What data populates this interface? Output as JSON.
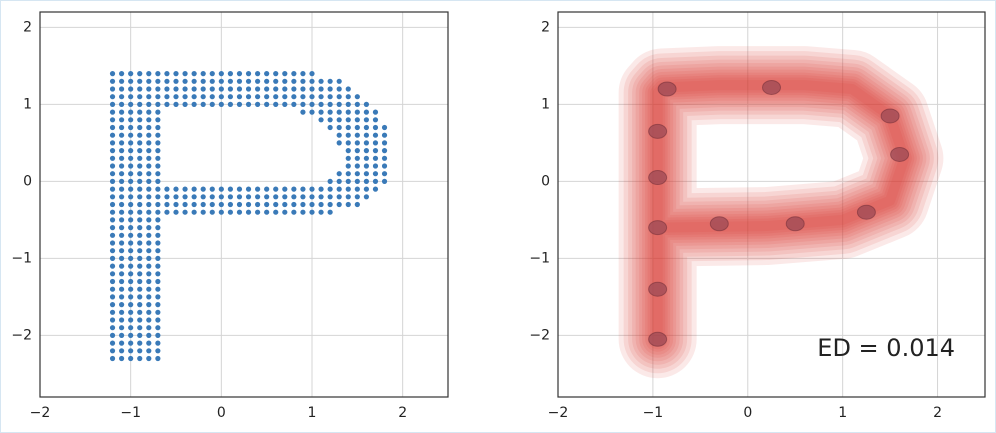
{
  "chart_data": [
    {
      "type": "scatter",
      "color": "#3a7ab8",
      "xlim": [
        -2,
        2.5
      ],
      "ylim": [
        -2.8,
        2.2
      ],
      "xticks": [
        {
          "value": -2,
          "label": "−2"
        },
        {
          "value": -1,
          "label": "−1"
        },
        0,
        1,
        2
      ],
      "yticks": [
        {
          "value": -2,
          "label": "−2"
        },
        {
          "value": -1,
          "label": "−1"
        },
        0,
        1,
        2
      ],
      "grid": true,
      "rows": [
        {
          "y": 1.4,
          "x": [
            -1.2,
            -1.1,
            -1,
            -0.9,
            -0.8,
            -0.7,
            -0.6,
            -0.5,
            -0.4,
            -0.3,
            -0.2,
            -0.1,
            0,
            0.1,
            0.2,
            0.3,
            0.4,
            0.5,
            0.6,
            0.7,
            0.8,
            0.9,
            1
          ]
        },
        {
          "y": 1.3,
          "x": [
            -1.2,
            -1.1,
            -1,
            -0.9,
            -0.8,
            -0.7,
            -0.6,
            -0.5,
            -0.4,
            -0.3,
            -0.2,
            -0.1,
            0,
            0.1,
            0.2,
            0.3,
            0.4,
            0.5,
            0.6,
            0.7,
            0.8,
            0.9,
            1,
            1.1,
            1.2,
            1.3
          ]
        },
        {
          "y": 1.2,
          "x": [
            -1.2,
            -1.1,
            -1,
            -0.9,
            -0.8,
            -0.7,
            -0.6,
            -0.5,
            -0.4,
            -0.3,
            -0.2,
            -0.1,
            0,
            0.1,
            0.2,
            0.3,
            0.4,
            0.5,
            0.6,
            0.7,
            0.8,
            0.9,
            1,
            1.1,
            1.2,
            1.3,
            1.4
          ]
        },
        {
          "y": 1.1,
          "x": [
            -1.2,
            -1.1,
            -1,
            -0.9,
            -0.8,
            -0.7,
            -0.6,
            -0.5,
            -0.4,
            -0.3,
            -0.2,
            -0.1,
            0,
            0.1,
            0.2,
            0.3,
            0.4,
            0.5,
            0.6,
            0.7,
            0.8,
            0.9,
            1,
            1.1,
            1.2,
            1.3,
            1.4,
            1.5
          ]
        },
        {
          "y": 1.0,
          "x": [
            -1.2,
            -1.1,
            -1,
            -0.9,
            -0.8,
            -0.7,
            -0.6,
            -0.5,
            -0.4,
            -0.3,
            -0.2,
            -0.1,
            0,
            0.1,
            0.2,
            0.3,
            0.4,
            0.5,
            0.6,
            0.7,
            0.8,
            0.9,
            1,
            1.1,
            1.2,
            1.3,
            1.4,
            1.5,
            1.6
          ]
        },
        {
          "y": 0.9,
          "x": [
            -1.2,
            -1.1,
            -1,
            -0.9,
            -0.8,
            -0.7,
            0.9,
            1,
            1.1,
            1.2,
            1.3,
            1.4,
            1.5,
            1.6,
            1.7
          ]
        },
        {
          "y": 0.8,
          "x": [
            -1.2,
            -1.1,
            -1,
            -0.9,
            -0.8,
            -0.7,
            1.1,
            1.2,
            1.3,
            1.4,
            1.5,
            1.6,
            1.7
          ]
        },
        {
          "y": 0.7,
          "x": [
            -1.2,
            -1.1,
            -1,
            -0.9,
            -0.8,
            -0.7,
            1.2,
            1.3,
            1.4,
            1.5,
            1.6,
            1.7,
            1.8
          ]
        },
        {
          "y": 0.6,
          "x": [
            -1.2,
            -1.1,
            -1,
            -0.9,
            -0.8,
            -0.7,
            1.3,
            1.4,
            1.5,
            1.6,
            1.7,
            1.8
          ]
        },
        {
          "y": 0.5,
          "x": [
            -1.2,
            -1.1,
            -1,
            -0.9,
            -0.8,
            -0.7,
            1.3,
            1.4,
            1.5,
            1.6,
            1.7,
            1.8
          ]
        },
        {
          "y": 0.4,
          "x": [
            -1.2,
            -1.1,
            -1,
            -0.9,
            -0.8,
            -0.7,
            1.4,
            1.5,
            1.6,
            1.7,
            1.8
          ]
        },
        {
          "y": 0.3,
          "x": [
            -1.2,
            -1.1,
            -1,
            -0.9,
            -0.8,
            -0.7,
            1.4,
            1.5,
            1.6,
            1.7,
            1.8
          ]
        },
        {
          "y": 0.2,
          "x": [
            -1.2,
            -1.1,
            -1,
            -0.9,
            -0.8,
            -0.7,
            1.4,
            1.5,
            1.6,
            1.7,
            1.8
          ]
        },
        {
          "y": 0.1,
          "x": [
            -1.2,
            -1.1,
            -1,
            -0.9,
            -0.8,
            -0.7,
            1.3,
            1.4,
            1.5,
            1.6,
            1.7,
            1.8
          ]
        },
        {
          "y": 0.0,
          "x": [
            -1.2,
            -1.1,
            -1,
            -0.9,
            -0.8,
            -0.7,
            1.2,
            1.3,
            1.4,
            1.5,
            1.6,
            1.7,
            1.8
          ]
        },
        {
          "y": -0.1,
          "x": [
            -1.2,
            -1.1,
            -1,
            -0.9,
            -0.8,
            -0.7,
            -0.6,
            -0.5,
            -0.4,
            -0.3,
            -0.2,
            -0.1,
            0,
            0.1,
            0.2,
            0.3,
            0.4,
            0.5,
            0.6,
            0.7,
            0.8,
            0.9,
            1,
            1.1,
            1.2,
            1.3,
            1.4,
            1.5,
            1.6,
            1.7
          ]
        },
        {
          "y": -0.2,
          "x": [
            -1.2,
            -1.1,
            -1,
            -0.9,
            -0.8,
            -0.7,
            -0.6,
            -0.5,
            -0.4,
            -0.3,
            -0.2,
            -0.1,
            0,
            0.1,
            0.2,
            0.3,
            0.4,
            0.5,
            0.6,
            0.7,
            0.8,
            0.9,
            1,
            1.1,
            1.2,
            1.3,
            1.4,
            1.5,
            1.6
          ]
        },
        {
          "y": -0.3,
          "x": [
            -1.2,
            -1.1,
            -1,
            -0.9,
            -0.8,
            -0.7,
            -0.6,
            -0.5,
            -0.4,
            -0.3,
            -0.2,
            -0.1,
            0,
            0.1,
            0.2,
            0.3,
            0.4,
            0.5,
            0.6,
            0.7,
            0.8,
            0.9,
            1,
            1.1,
            1.2,
            1.3,
            1.4,
            1.5
          ]
        },
        {
          "y": -0.4,
          "x": [
            -1.2,
            -1.1,
            -1,
            -0.9,
            -0.8,
            -0.7,
            -0.6,
            -0.5,
            -0.4,
            -0.3,
            -0.2,
            -0.1,
            0,
            0.1,
            0.2,
            0.3,
            0.4,
            0.5,
            0.6,
            0.7,
            0.8,
            0.9,
            1,
            1.1,
            1.2
          ]
        },
        {
          "y": -0.5,
          "x": [
            -1.2,
            -1.1,
            -1,
            -0.9,
            -0.8,
            -0.7
          ]
        },
        {
          "y": -0.6,
          "x": [
            -1.2,
            -1.1,
            -1,
            -0.9,
            -0.8,
            -0.7
          ]
        },
        {
          "y": -0.7,
          "x": [
            -1.2,
            -1.1,
            -1,
            -0.9,
            -0.8,
            -0.7
          ]
        },
        {
          "y": -0.8,
          "x": [
            -1.2,
            -1.1,
            -1,
            -0.9,
            -0.8,
            -0.7
          ]
        },
        {
          "y": -0.9,
          "x": [
            -1.2,
            -1.1,
            -1,
            -0.9,
            -0.8,
            -0.7
          ]
        },
        {
          "y": -1.0,
          "x": [
            -1.2,
            -1.1,
            -1,
            -0.9,
            -0.8,
            -0.7
          ]
        },
        {
          "y": -1.1,
          "x": [
            -1.2,
            -1.1,
            -1,
            -0.9,
            -0.8,
            -0.7
          ]
        },
        {
          "y": -1.2,
          "x": [
            -1.2,
            -1.1,
            -1,
            -0.9,
            -0.8,
            -0.7
          ]
        },
        {
          "y": -1.3,
          "x": [
            -1.2,
            -1.1,
            -1,
            -0.9,
            -0.8,
            -0.7
          ]
        },
        {
          "y": -1.4,
          "x": [
            -1.2,
            -1.1,
            -1,
            -0.9,
            -0.8,
            -0.7
          ]
        },
        {
          "y": -1.5,
          "x": [
            -1.2,
            -1.1,
            -1,
            -0.9,
            -0.8,
            -0.7
          ]
        },
        {
          "y": -1.6,
          "x": [
            -1.2,
            -1.1,
            -1,
            -0.9,
            -0.8,
            -0.7
          ]
        },
        {
          "y": -1.7,
          "x": [
            -1.2,
            -1.1,
            -1,
            -0.9,
            -0.8,
            -0.7
          ]
        },
        {
          "y": -1.8,
          "x": [
            -1.2,
            -1.1,
            -1,
            -0.9,
            -0.8,
            -0.7
          ]
        },
        {
          "y": -1.9,
          "x": [
            -1.2,
            -1.1,
            -1,
            -0.9,
            -0.8,
            -0.7
          ]
        },
        {
          "y": -2.0,
          "x": [
            -1.2,
            -1.1,
            -1,
            -0.9,
            -0.8,
            -0.7
          ]
        },
        {
          "y": -2.1,
          "x": [
            -1.2,
            -1.1,
            -1,
            -0.9,
            -0.8,
            -0.7
          ]
        },
        {
          "y": -2.2,
          "x": [
            -1.2,
            -1.1,
            -1,
            -0.9,
            -0.8,
            -0.7
          ]
        },
        {
          "y": -2.3,
          "x": [
            -1.2,
            -1.1,
            -1,
            -0.9,
            -0.8,
            -0.7
          ]
        }
      ]
    },
    {
      "type": "density",
      "color": "#d9342b",
      "peak_color": "#9c4a55",
      "xlim": [
        -2,
        2.5
      ],
      "ylim": [
        -2.8,
        2.2
      ],
      "xticks": [
        {
          "value": -2,
          "label": "−2"
        },
        {
          "value": -1,
          "label": "−1"
        },
        0,
        1,
        2
      ],
      "yticks": [
        {
          "value": -2,
          "label": "−2"
        },
        {
          "value": -1,
          "label": "−1"
        },
        0,
        1,
        2
      ],
      "grid": true,
      "line": {
        "x": [
          -0.95,
          -0.95,
          -0.9,
          -0.3,
          0.6,
          1.1,
          1.5,
          1.65,
          1.5,
          1.0,
          0.2,
          -0.95
        ],
        "y": [
          -2.05,
          1.15,
          1.22,
          1.25,
          1.25,
          1.2,
          0.85,
          0.3,
          -0.25,
          -0.5,
          -0.58,
          -0.6
        ]
      },
      "peaks": {
        "x": [
          -0.85,
          -0.95,
          -0.95,
          -0.95,
          -0.95,
          -0.95,
          0.25,
          1.5,
          1.6,
          1.25,
          0.5,
          -0.3
        ],
        "y": [
          1.2,
          0.65,
          -0.6,
          -1.4,
          -2.05,
          0.05,
          1.22,
          0.85,
          0.35,
          -0.4,
          -0.55,
          -0.55
        ]
      },
      "annotation": "ED = 0.014"
    }
  ]
}
